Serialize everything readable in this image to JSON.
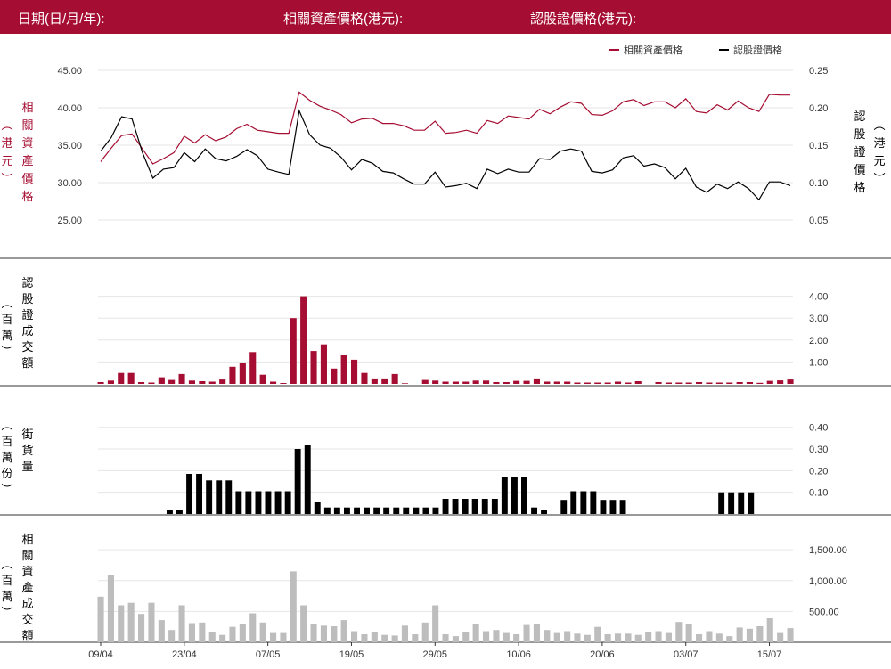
{
  "header": {
    "date_label": "日期(日/月/年):",
    "underlying_label": "相關資產價格(港元):",
    "warrant_label": "認股證價格(港元):"
  },
  "colors": {
    "header_bg": "#a50d32",
    "underlying": "#a50d32",
    "warrant": "#000000",
    "asset_turnover": "#bdbdbd"
  },
  "chart_data": [
    {
      "type": "line",
      "title": "",
      "legend": [
        "相關資產價格",
        "認股證價格"
      ],
      "legend_position": "top-right",
      "x_ticks": [
        "09/04",
        "23/04",
        "07/05",
        "19/05",
        "29/05",
        "10/06",
        "20/06",
        "03/07",
        "15/07"
      ],
      "x_tick_index": [
        0,
        8,
        16,
        24,
        32,
        40,
        48,
        56,
        64
      ],
      "y_left": {
        "label": "相關資產價格(港元)",
        "ticks": [
          "25.00",
          "30.00",
          "35.00",
          "40.00",
          "45.00"
        ],
        "range": [
          20,
          45
        ]
      },
      "y_right": {
        "label": "認股證價格(港元)",
        "ticks": [
          "0.05",
          "0.10",
          "0.15",
          "0.20",
          "0.25"
        ],
        "range": [
          0,
          0.25
        ]
      },
      "series": [
        {
          "name": "相關資產價格",
          "axis": "left",
          "values": [
            32.8,
            34.6,
            36.3,
            36.5,
            34.5,
            32.5,
            33.2,
            34.0,
            36.2,
            35.3,
            36.4,
            35.6,
            36.1,
            37.2,
            37.8,
            37.0,
            36.8,
            36.6,
            36.6,
            42.1,
            41.0,
            40.2,
            39.7,
            39.1,
            38.0,
            38.5,
            38.6,
            37.9,
            37.9,
            37.6,
            37.0,
            37.0,
            38.2,
            36.6,
            36.7,
            37.0,
            36.6,
            38.3,
            37.9,
            38.9,
            38.7,
            38.5,
            39.8,
            39.2,
            40.1,
            40.8,
            40.6,
            39.1,
            39.0,
            39.6,
            40.8,
            41.1,
            40.3,
            40.8,
            40.8,
            40.0,
            41.2,
            39.5,
            39.3,
            40.4,
            39.7,
            40.9,
            40.0,
            39.5,
            41.8,
            41.7,
            41.7
          ]
        },
        {
          "name": "認股證價格",
          "axis": "right",
          "values": [
            0.142,
            0.16,
            0.188,
            0.185,
            0.14,
            0.106,
            0.118,
            0.12,
            0.14,
            0.128,
            0.145,
            0.132,
            0.129,
            0.135,
            0.144,
            0.136,
            0.118,
            0.114,
            0.111,
            0.196,
            0.164,
            0.15,
            0.146,
            0.134,
            0.117,
            0.131,
            0.126,
            0.115,
            0.113,
            0.105,
            0.098,
            0.098,
            0.114,
            0.094,
            0.096,
            0.099,
            0.092,
            0.118,
            0.112,
            0.118,
            0.114,
            0.114,
            0.132,
            0.131,
            0.142,
            0.145,
            0.142,
            0.115,
            0.113,
            0.117,
            0.133,
            0.136,
            0.122,
            0.125,
            0.12,
            0.105,
            0.119,
            0.094,
            0.087,
            0.098,
            0.092,
            0.101,
            0.092,
            0.077,
            0.101,
            0.101,
            0.096
          ]
        }
      ]
    },
    {
      "type": "bar",
      "title": "",
      "ylabel": "認股證成交額(百萬)",
      "y_ticks": [
        "1.00",
        "2.00",
        "3.00",
        "4.00"
      ],
      "ylim": [
        0,
        4.35
      ],
      "color": "#a50d32",
      "values": [
        0.08,
        0.15,
        0.5,
        0.5,
        0.08,
        0.06,
        0.3,
        0.18,
        0.45,
        0.15,
        0.12,
        0.1,
        0.2,
        0.78,
        0.95,
        1.45,
        0.42,
        0.1,
        0.04,
        3.0,
        4.0,
        1.5,
        1.8,
        0.7,
        1.3,
        1.1,
        0.5,
        0.25,
        0.25,
        0.45,
        0.03,
        0,
        0.18,
        0.15,
        0.1,
        0.1,
        0.1,
        0.15,
        0.15,
        0.08,
        0.08,
        0.14,
        0.14,
        0.25,
        0.1,
        0.1,
        0.1,
        0.06,
        0.06,
        0.06,
        0.06,
        0.1,
        0.06,
        0.12,
        0,
        0.08,
        0.06,
        0.06,
        0.06,
        0.08,
        0.06,
        0.06,
        0.06,
        0.08,
        0.08,
        0.05,
        0.14,
        0.16,
        0.2
      ]
    },
    {
      "type": "bar",
      "title": "",
      "ylabel": "街貨量(百萬份)",
      "y_ticks": [
        "0.10",
        "0.20",
        "0.30",
        "0.40"
      ],
      "ylim": [
        0,
        0.44
      ],
      "color": "#000000",
      "values": [
        0,
        0,
        0,
        0,
        0,
        0,
        0,
        0.02,
        0.02,
        0.185,
        0.185,
        0.155,
        0.155,
        0.155,
        0.105,
        0.105,
        0.105,
        0.105,
        0.105,
        0.105,
        0.3,
        0.32,
        0.055,
        0.03,
        0.03,
        0.03,
        0.03,
        0.03,
        0.03,
        0.03,
        0.03,
        0.03,
        0.03,
        0.03,
        0.03,
        0.07,
        0.07,
        0.07,
        0.07,
        0.07,
        0.07,
        0.17,
        0.17,
        0.17,
        0.03,
        0.02,
        0,
        0.065,
        0.105,
        0.105,
        0.105,
        0.065,
        0.065,
        0.065,
        0,
        0,
        0,
        0,
        0,
        0,
        0,
        0,
        0,
        0.1,
        0.1,
        0.1,
        0.1,
        0,
        0,
        0,
        0
      ]
    },
    {
      "type": "bar",
      "title": "",
      "ylabel": "相關資產成交額(百萬)",
      "y_ticks": [
        "500.00",
        "1,000.00",
        "1,500.00"
      ],
      "ylim": [
        0,
        1560
      ],
      "color": "#bdbdbd",
      "values": [
        740,
        1090,
        600,
        640,
        460,
        640,
        360,
        200,
        600,
        310,
        320,
        160,
        120,
        250,
        290,
        470,
        320,
        150,
        150,
        1150,
        600,
        300,
        270,
        260,
        360,
        180,
        130,
        160,
        120,
        110,
        270,
        130,
        320,
        600,
        130,
        100,
        160,
        290,
        180,
        200,
        150,
        130,
        280,
        300,
        200,
        150,
        180,
        140,
        120,
        250,
        130,
        140,
        140,
        120,
        160,
        180,
        150,
        330,
        300,
        130,
        180,
        140,
        100,
        240,
        220,
        260,
        390,
        150,
        230
      ]
    }
  ]
}
